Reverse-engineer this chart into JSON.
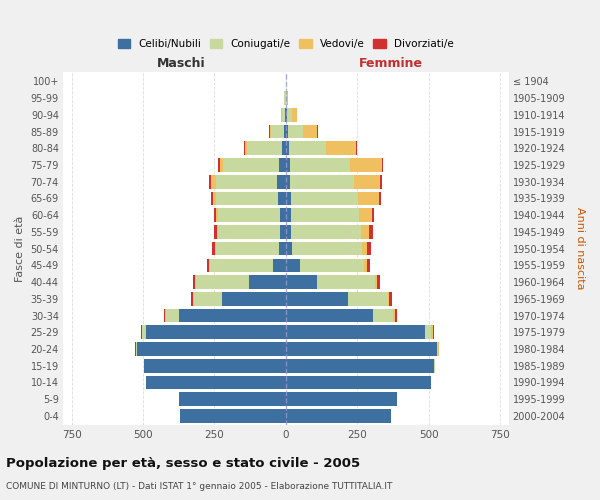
{
  "age_groups": [
    "0-4",
    "5-9",
    "10-14",
    "15-19",
    "20-24",
    "25-29",
    "30-34",
    "35-39",
    "40-44",
    "45-49",
    "50-54",
    "55-59",
    "60-64",
    "65-69",
    "70-74",
    "75-79",
    "80-84",
    "85-89",
    "90-94",
    "95-99",
    "100+"
  ],
  "birth_years": [
    "2000-2004",
    "1995-1999",
    "1990-1994",
    "1985-1989",
    "1980-1984",
    "1975-1979",
    "1970-1974",
    "1965-1969",
    "1960-1964",
    "1955-1959",
    "1950-1954",
    "1945-1949",
    "1940-1944",
    "1935-1939",
    "1930-1934",
    "1925-1929",
    "1920-1924",
    "1915-1919",
    "1910-1914",
    "1905-1909",
    "≤ 1904"
  ],
  "male_celibi": [
    370,
    375,
    490,
    495,
    520,
    490,
    375,
    225,
    130,
    45,
    25,
    22,
    22,
    28,
    30,
    25,
    15,
    8,
    3,
    1,
    0
  ],
  "male_coniugati": [
    0,
    0,
    1,
    2,
    4,
    12,
    45,
    95,
    185,
    220,
    220,
    215,
    215,
    215,
    215,
    195,
    120,
    45,
    12,
    4,
    1
  ],
  "male_vedovi": [
    0,
    0,
    0,
    0,
    1,
    2,
    3,
    4,
    4,
    4,
    4,
    4,
    8,
    12,
    18,
    12,
    8,
    4,
    2,
    0,
    0
  ],
  "male_divorziati": [
    0,
    0,
    0,
    1,
    2,
    2,
    4,
    7,
    7,
    7,
    9,
    9,
    7,
    7,
    7,
    5,
    3,
    2,
    0,
    0,
    0
  ],
  "female_nubili": [
    368,
    388,
    508,
    518,
    528,
    488,
    305,
    218,
    108,
    48,
    22,
    18,
    18,
    18,
    15,
    15,
    10,
    6,
    3,
    1,
    0
  ],
  "female_coniugate": [
    0,
    0,
    1,
    3,
    6,
    22,
    72,
    140,
    205,
    225,
    245,
    245,
    238,
    235,
    225,
    210,
    132,
    55,
    18,
    4,
    1
  ],
  "female_vedove": [
    0,
    0,
    0,
    1,
    2,
    4,
    4,
    4,
    8,
    12,
    18,
    28,
    45,
    75,
    90,
    112,
    105,
    50,
    18,
    4,
    0
  ],
  "female_divorziate": [
    0,
    0,
    0,
    1,
    2,
    4,
    7,
    9,
    9,
    9,
    13,
    13,
    9,
    7,
    7,
    4,
    3,
    2,
    0,
    0,
    0
  ],
  "colors": {
    "celibi": "#3d6fa0",
    "coniugati": "#c8d9a0",
    "vedovi": "#f0c060",
    "divorziati": "#d03030"
  },
  "xlim": 780,
  "title": "Popolazione per età, sesso e stato civile - 2005",
  "subtitle": "COMUNE DI MINTURNO (LT) - Dati ISTAT 1° gennaio 2005 - Elaborazione TUTTITALIA.IT",
  "ylabel_left": "Fasce di età",
  "ylabel_right": "Anni di nascita",
  "xlabel_left": "Maschi",
  "xlabel_right": "Femmine",
  "bg_color": "#f0f0f0",
  "plot_bg": "#ffffff"
}
